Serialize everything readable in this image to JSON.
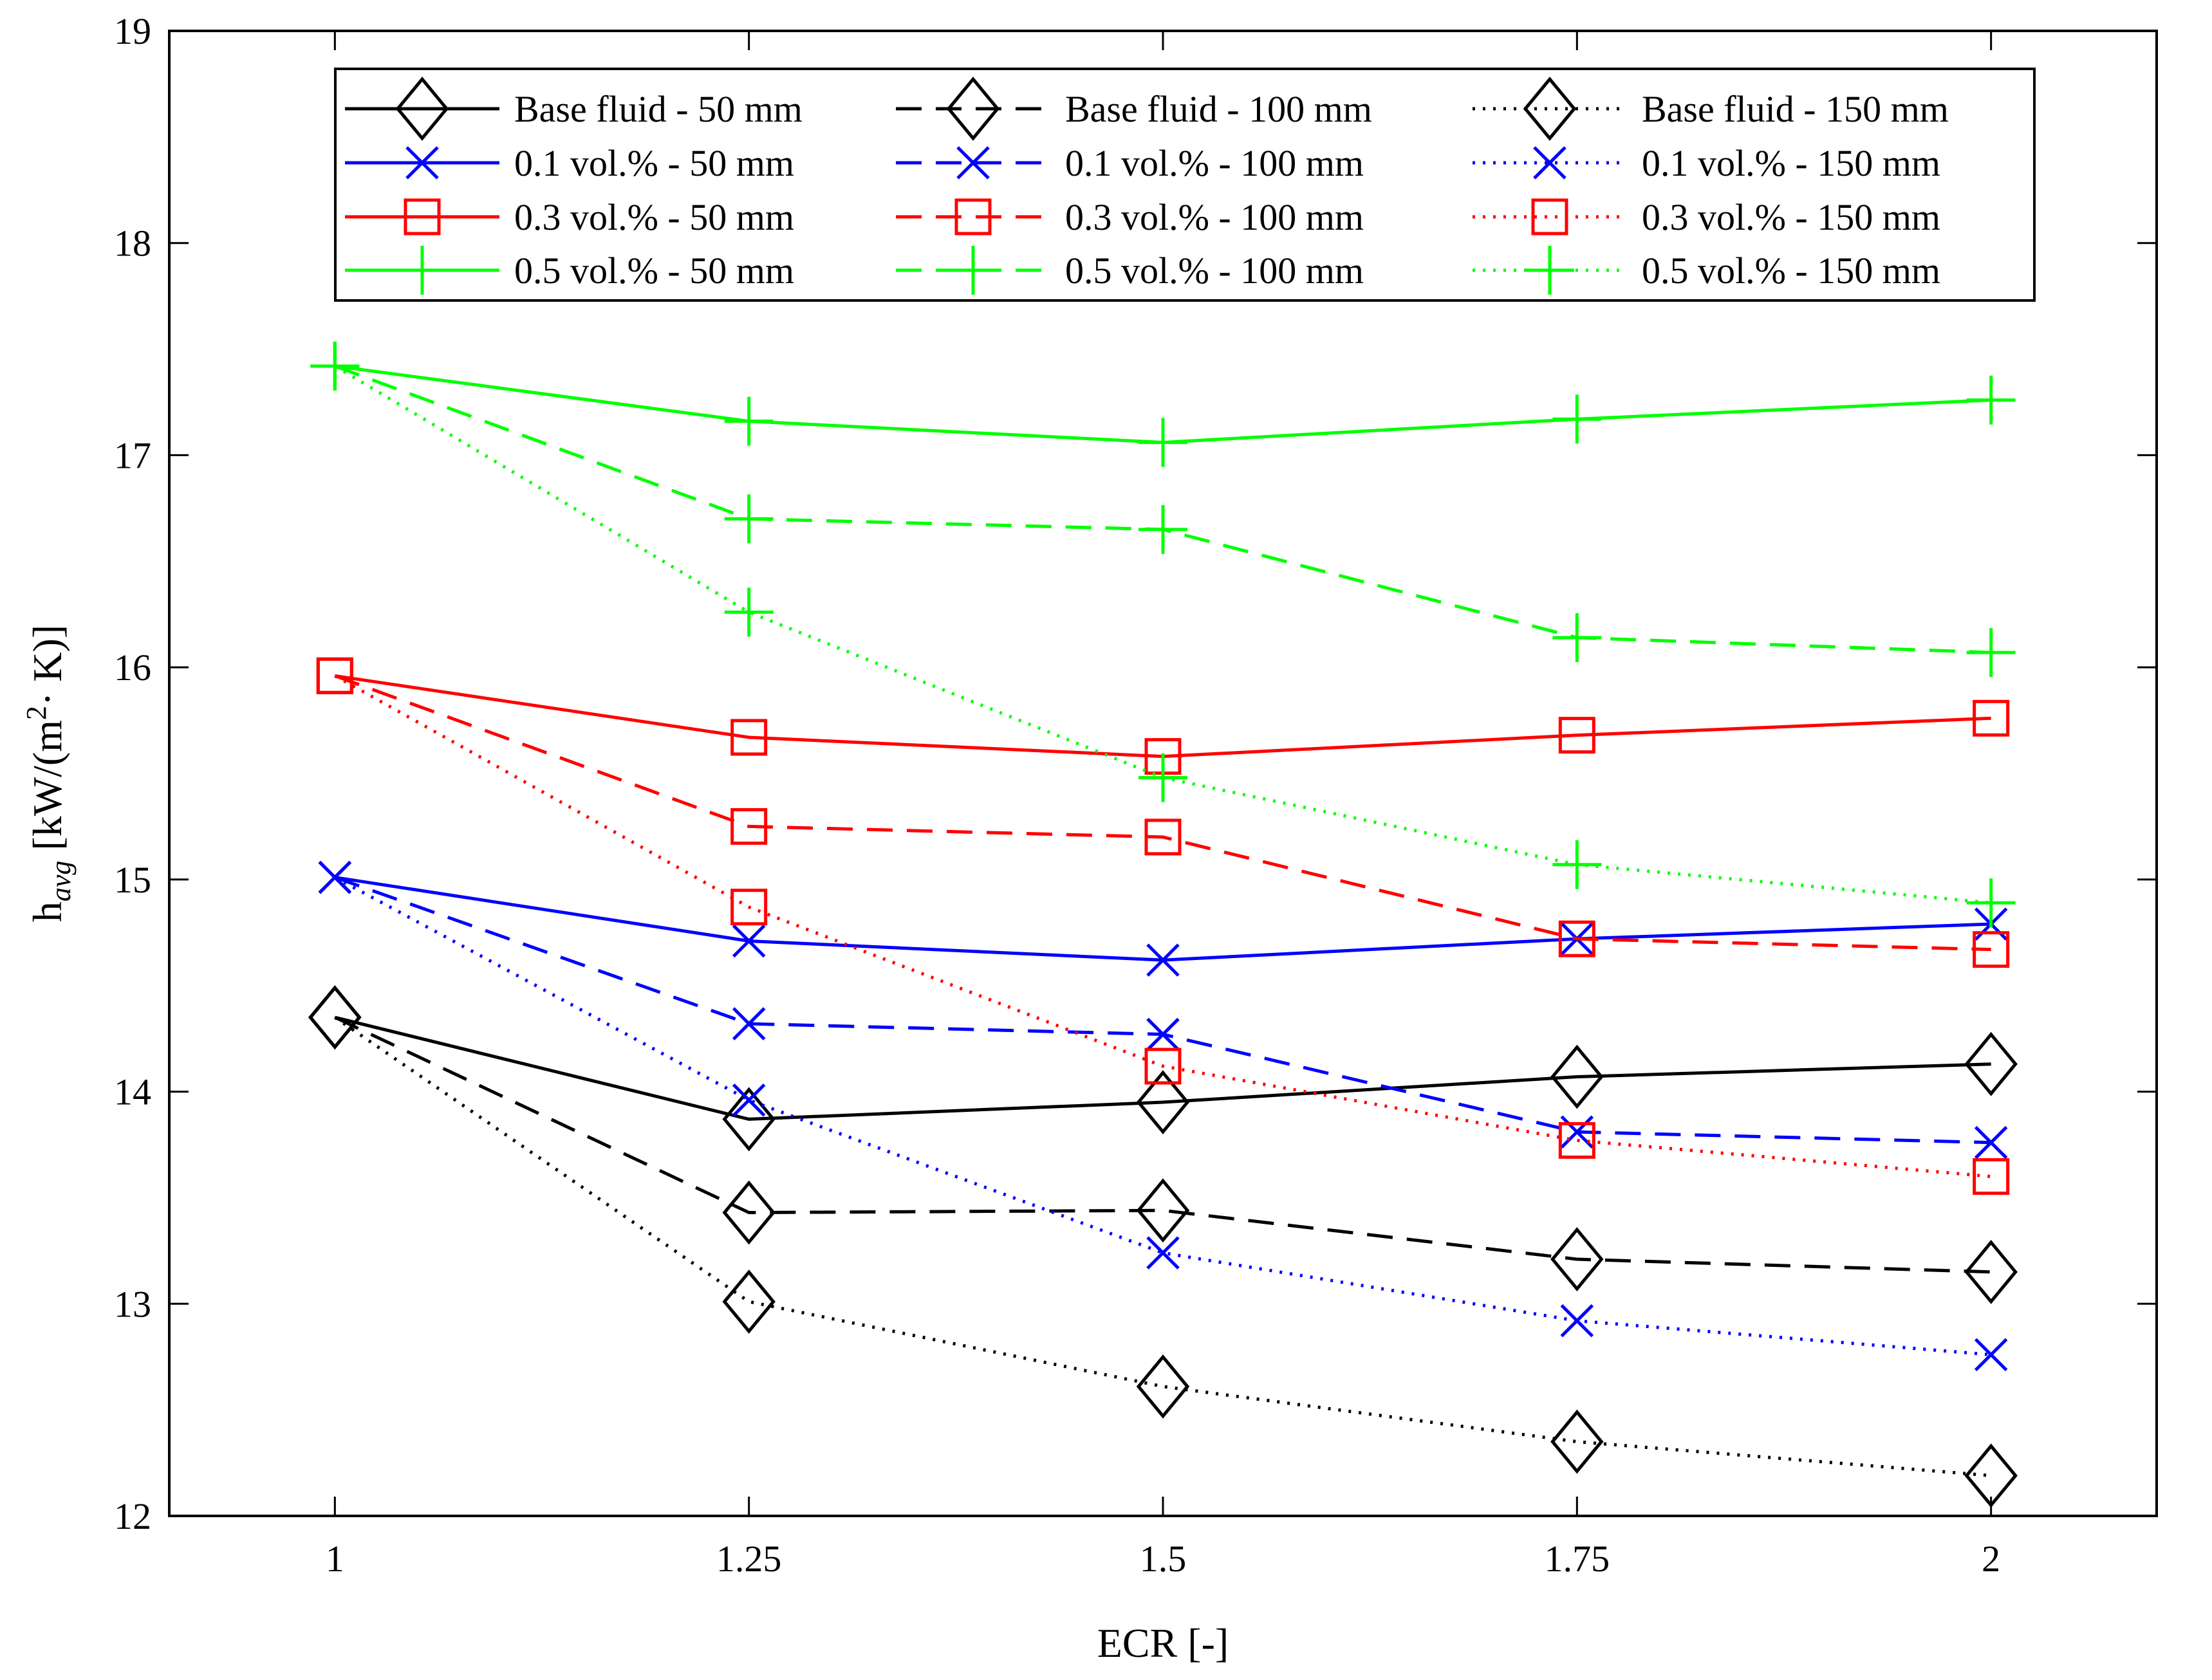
{
  "chart_data": {
    "type": "line",
    "title": "",
    "xlabel": "ECR [-]",
    "ylabel": {
      "base": "h",
      "subscript": "avg",
      "units_prefix": " [kW/(m",
      "units_sup": "2",
      "units_suffix": "· K)]"
    },
    "x": [
      1,
      1.25,
      1.5,
      1.75,
      2
    ],
    "x_tick_labels": [
      "1",
      "1.25",
      "1.5",
      "1.75",
      "2"
    ],
    "y_ticks": [
      12,
      13,
      14,
      15,
      16,
      17,
      18,
      19
    ],
    "y_tick_labels": [
      "12",
      "13",
      "14",
      "15",
      "16",
      "17",
      "18",
      "19"
    ],
    "xlim": [
      0.9,
      2.1
    ],
    "ylim": [
      12,
      19
    ],
    "grid": false,
    "legend_position": "top-center",
    "legend_columns": 3,
    "series": [
      {
        "name": "Base fluid - 50 mm",
        "color": "#000000",
        "dash": "solid",
        "marker": "diamond",
        "values": [
          14.35,
          13.87,
          13.95,
          14.07,
          14.13
        ]
      },
      {
        "name": "Base fluid - 100 mm",
        "color": "#000000",
        "dash": "dashed",
        "marker": "diamond",
        "values": [
          14.35,
          13.43,
          13.44,
          13.21,
          13.15
        ]
      },
      {
        "name": "Base fluid - 150 mm",
        "color": "#000000",
        "dash": "dotted",
        "marker": "diamond",
        "values": [
          14.35,
          13.01,
          12.61,
          12.35,
          12.19
        ]
      },
      {
        "name": "0.1 vol.% - 50 mm",
        "color": "#0000ff",
        "dash": "solid",
        "marker": "x",
        "values": [
          15.01,
          14.71,
          14.62,
          14.72,
          14.79
        ]
      },
      {
        "name": "0.1 vol.% - 100 mm",
        "color": "#0000ff",
        "dash": "dashed",
        "marker": "x",
        "values": [
          15.01,
          14.32,
          14.27,
          13.81,
          13.76
        ]
      },
      {
        "name": "0.1 vol.% - 150 mm",
        "color": "#0000ff",
        "dash": "dotted",
        "marker": "x",
        "values": [
          15.01,
          13.96,
          13.24,
          12.92,
          12.76
        ]
      },
      {
        "name": "0.3 vol.% - 50 mm",
        "color": "#ff0000",
        "dash": "solid",
        "marker": "square",
        "values": [
          15.96,
          15.67,
          15.58,
          15.68,
          15.76
        ]
      },
      {
        "name": "0.3 vol.% - 100 mm",
        "color": "#ff0000",
        "dash": "dashed",
        "marker": "square",
        "values": [
          15.96,
          15.25,
          15.2,
          14.72,
          14.67
        ]
      },
      {
        "name": "0.3 vol.% - 150 mm",
        "color": "#ff0000",
        "dash": "dotted",
        "marker": "square",
        "values": [
          15.96,
          14.87,
          14.12,
          13.77,
          13.6
        ]
      },
      {
        "name": "0.5 vol.% - 50 mm",
        "color": "#00ff00",
        "dash": "solid",
        "marker": "plus",
        "values": [
          17.42,
          17.16,
          17.06,
          17.17,
          17.26
        ]
      },
      {
        "name": "0.5 vol.% - 100 mm",
        "color": "#00ff00",
        "dash": "dashed",
        "marker": "plus",
        "values": [
          17.42,
          16.7,
          16.65,
          16.14,
          16.07
        ]
      },
      {
        "name": "0.5 vol.% - 150 mm",
        "color": "#00ff00",
        "dash": "dotted",
        "marker": "plus",
        "values": [
          17.42,
          16.26,
          15.48,
          15.07,
          14.89
        ]
      }
    ]
  }
}
